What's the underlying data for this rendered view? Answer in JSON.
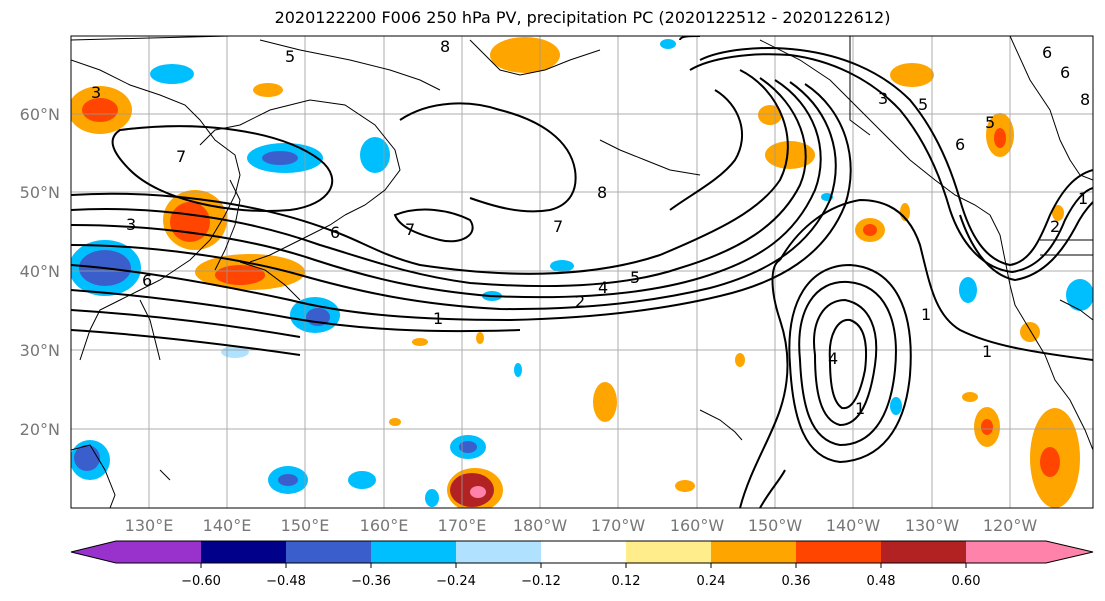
{
  "title": "2020122200 F006 250 hPa PV, precipitation PC (2020122512 - 2020122612)",
  "map": {
    "lat_labels": [
      "60°N",
      "50°N",
      "40°N",
      "30°N",
      "20°N"
    ],
    "lon_labels": [
      "130°E",
      "140°E",
      "150°E",
      "160°E",
      "170°E",
      "180°W",
      "170°W",
      "160°W",
      "150°W",
      "140°W",
      "130°W",
      "120°W"
    ],
    "pv_contour_labels": [
      "5",
      "8",
      "6",
      "7",
      "3",
      "6",
      "1",
      "7",
      "6",
      "8",
      "7",
      "4",
      "5",
      "2",
      "1",
      "1",
      "1",
      "4",
      "5",
      "3",
      "6",
      "8",
      "1",
      "2",
      "6",
      "5",
      "3"
    ]
  },
  "colorbar": {
    "tick_labels": [
      "−0.60",
      "−0.48",
      "−0.36",
      "−0.24",
      "−0.12",
      "0.12",
      "0.24",
      "0.36",
      "0.48",
      "0.60"
    ],
    "colors": [
      "#9932cc",
      "#00008b",
      "#3a5fcd",
      "#00bfff",
      "#b0e2ff",
      "#ffffff",
      "#ffec8b",
      "#ffa500",
      "#ff4500",
      "#b22222",
      "#ff82ab"
    ]
  },
  "colors": {
    "coast": "#000000",
    "grid": "#999999",
    "pv_contour": "#000000"
  }
}
